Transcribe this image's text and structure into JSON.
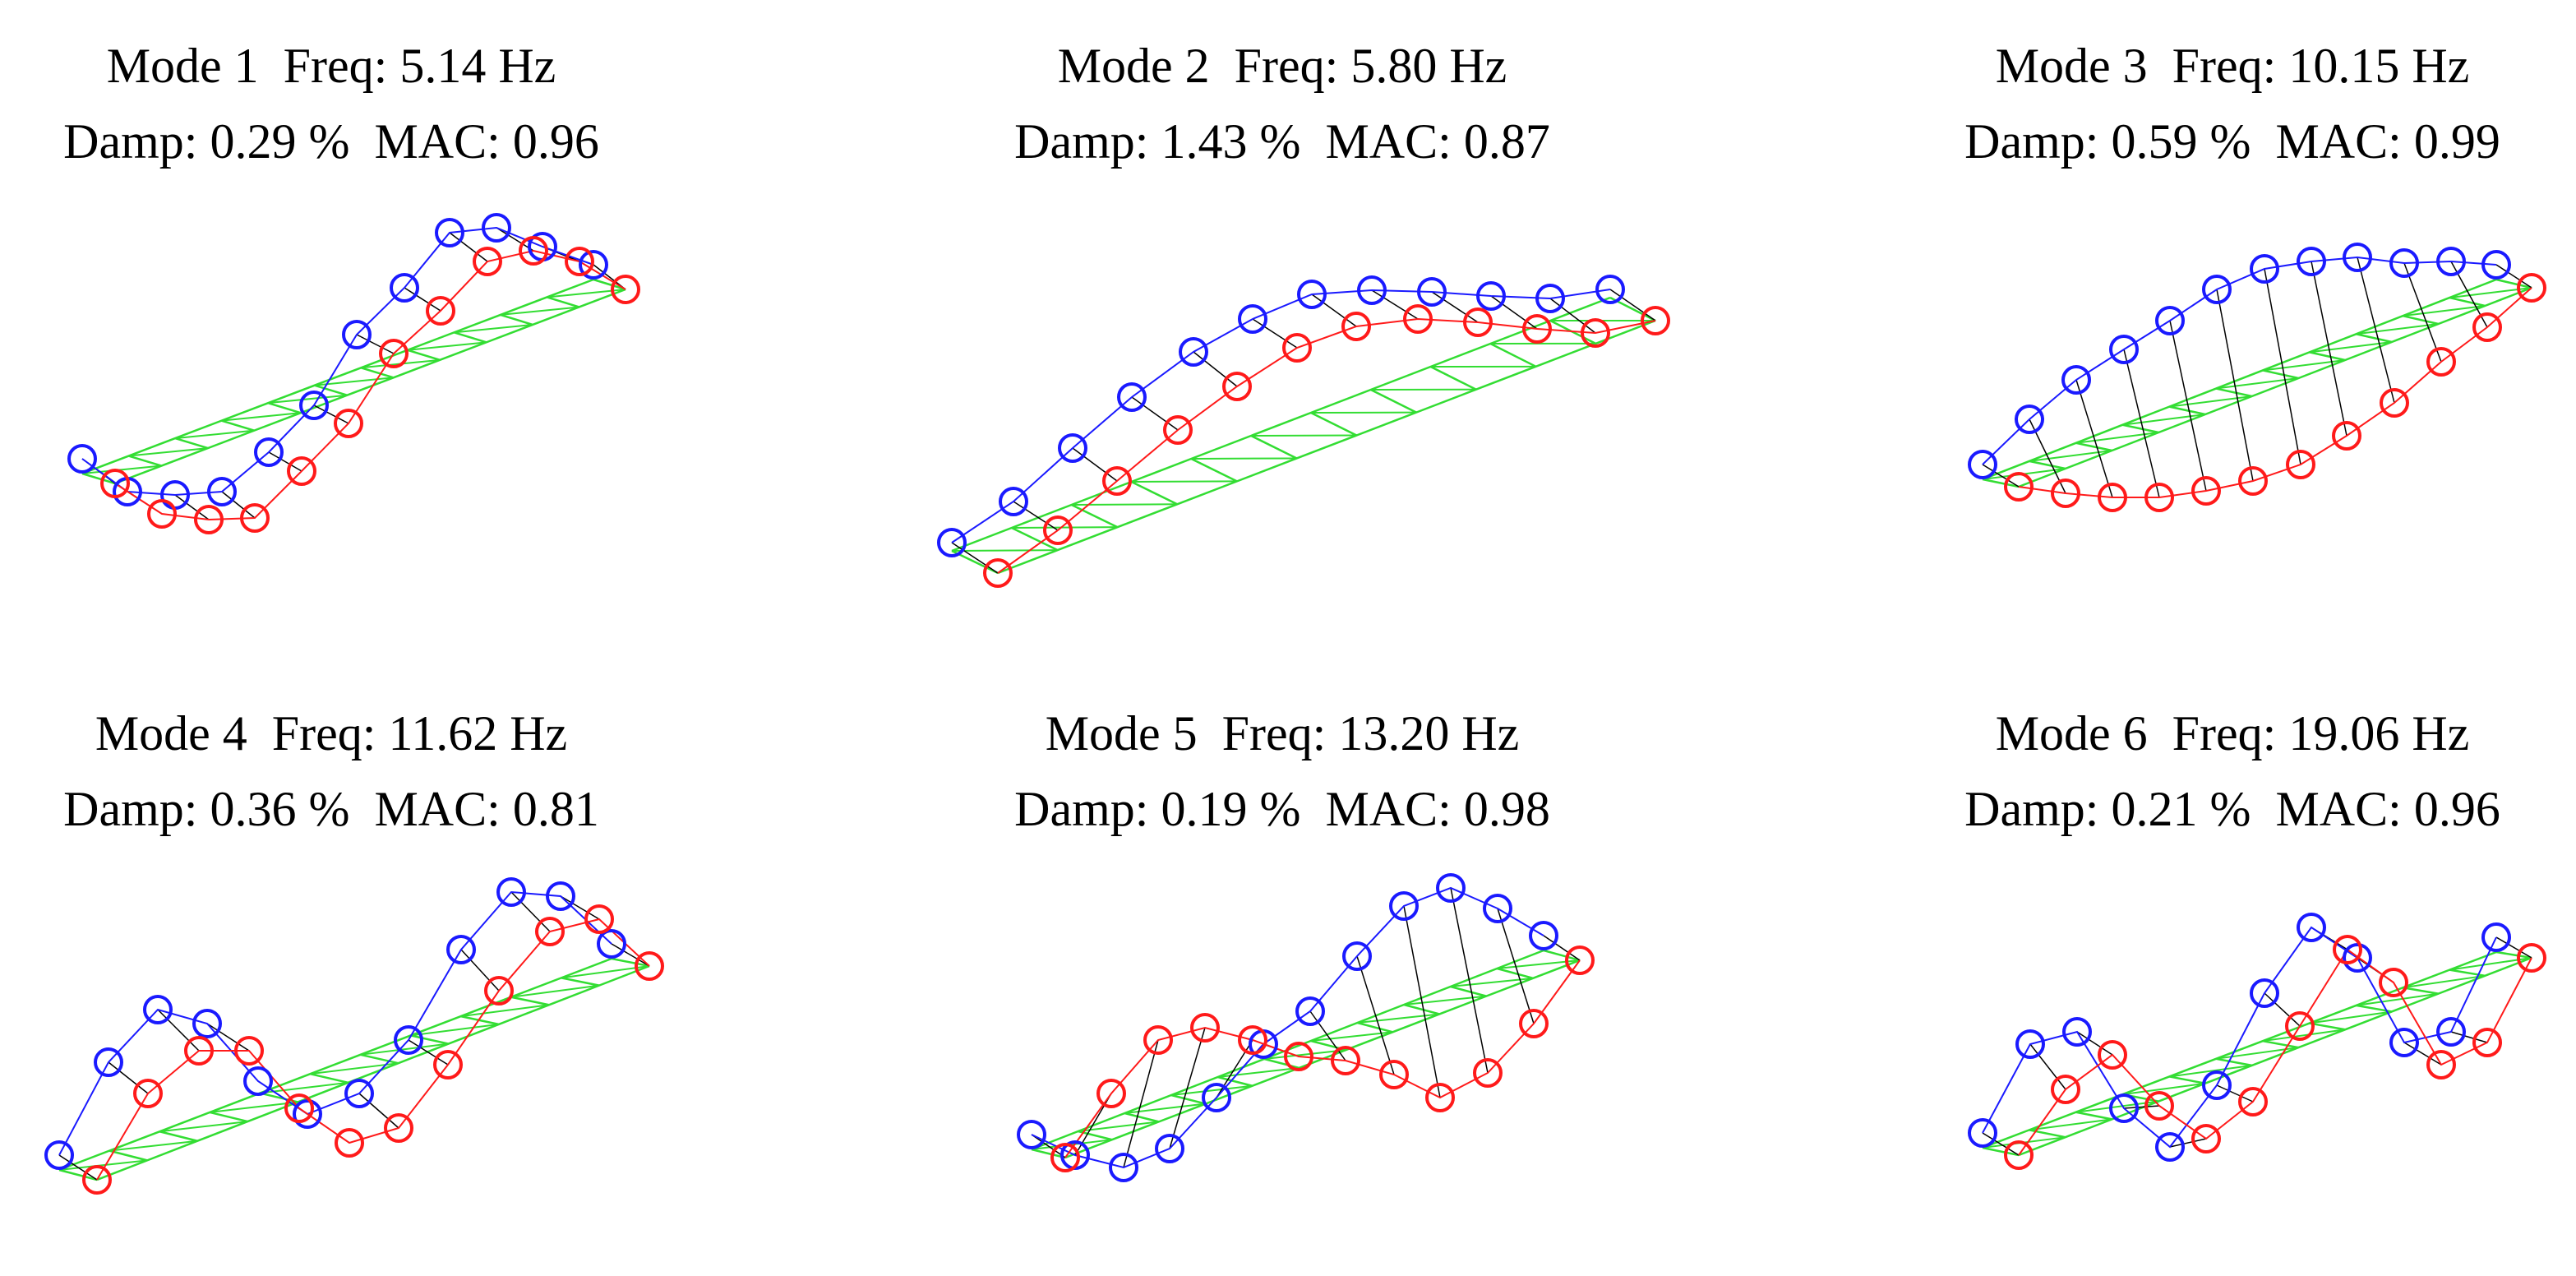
{
  "colors": {
    "undeformed": "#33dd33",
    "mode_estimated": "#1a1aff",
    "mode_reference": "#ff1a1a",
    "connector": "#000000",
    "background": "#ffffff"
  },
  "legend": [],
  "panels": [
    {
      "title_line1": "Mode 1  Freq: 5.14 Hz",
      "title_line2": "Damp: 0.29 %  MAC: 0.96",
      "blue": [
        [
          100,
          558
        ],
        [
          155,
          598
        ],
        [
          213,
          602
        ],
        [
          270,
          598
        ],
        [
          327,
          550
        ],
        [
          382,
          493
        ],
        [
          434,
          407
        ],
        [
          492,
          350
        ],
        [
          547,
          283
        ],
        [
          604,
          277
        ],
        [
          660,
          300
        ],
        [
          722,
          322
        ]
      ],
      "red": [
        [
          140,
          588
        ],
        [
          197,
          625
        ],
        [
          254,
          632
        ],
        [
          310,
          630
        ],
        [
          367,
          573
        ],
        [
          424,
          515
        ],
        [
          479,
          430
        ],
        [
          536,
          378
        ],
        [
          593,
          318
        ],
        [
          649,
          305
        ],
        [
          705,
          318
        ],
        [
          761,
          352
        ]
      ]
    },
    {
      "title_line1": "Mode 2  Freq: 5.80 Hz",
      "title_line2": "Damp: 1.43 %  MAC: 0.87",
      "blue": [
        [
          1158,
          660
        ],
        [
          1233,
          610
        ],
        [
          1305,
          545
        ],
        [
          1377,
          483
        ],
        [
          1452,
          428
        ],
        [
          1524,
          388
        ],
        [
          1596,
          358
        ],
        [
          1669,
          353
        ],
        [
          1742,
          355
        ],
        [
          1814,
          360
        ],
        [
          1886,
          363
        ],
        [
          1959,
          352
        ]
      ],
      "red": [
        [
          1214,
          697
        ],
        [
          1287,
          645
        ],
        [
          1359,
          585
        ],
        [
          1433,
          523
        ],
        [
          1505,
          470
        ],
        [
          1578,
          423
        ],
        [
          1650,
          397
        ],
        [
          1725,
          388
        ],
        [
          1798,
          392
        ],
        [
          1870,
          400
        ],
        [
          1941,
          405
        ],
        [
          2014,
          390
        ]
      ]
    },
    {
      "title_line1": "Mode 3  Freq: 10.15 Hz",
      "title_line2": "Damp: 0.59 %  MAC: 0.99",
      "blue": [
        [
          2412,
          565
        ],
        [
          2469,
          510
        ],
        [
          2526,
          462
        ],
        [
          2584,
          425
        ],
        [
          2640,
          390
        ],
        [
          2697,
          352
        ],
        [
          2755,
          327
        ],
        [
          2812,
          318
        ],
        [
          2868,
          313
        ],
        [
          2925,
          320
        ],
        [
          2982,
          318
        ],
        [
          3037,
          322
        ]
      ],
      "red": [
        [
          2456,
          592
        ],
        [
          2513,
          600
        ],
        [
          2570,
          605
        ],
        [
          2627,
          605
        ],
        [
          2684,
          597
        ],
        [
          2741,
          585
        ],
        [
          2799,
          565
        ],
        [
          2855,
          530
        ],
        [
          2913,
          490
        ],
        [
          2970,
          440
        ],
        [
          3026,
          398
        ],
        [
          3080,
          350
        ]
      ]
    },
    {
      "title_line1": "Mode 4  Freq: 11.62 Hz",
      "title_line2": "Damp: 0.36 %  MAC: 0.81",
      "blue": [
        [
          72,
          1405
        ],
        [
          132,
          1292
        ],
        [
          192,
          1228
        ],
        [
          252,
          1245
        ],
        [
          314,
          1315
        ],
        [
          374,
          1355
        ],
        [
          437,
          1330
        ],
        [
          497,
          1265
        ],
        [
          561,
          1155
        ],
        [
          622,
          1085
        ],
        [
          682,
          1090
        ],
        [
          744,
          1148
        ]
      ],
      "red": [
        [
          118,
          1435
        ],
        [
          180,
          1330
        ],
        [
          242,
          1278
        ],
        [
          303,
          1278
        ],
        [
          364,
          1348
        ],
        [
          425,
          1390
        ],
        [
          485,
          1372
        ],
        [
          545,
          1295
        ],
        [
          607,
          1205
        ],
        [
          669,
          1133
        ],
        [
          729,
          1118
        ],
        [
          790,
          1175
        ]
      ]
    },
    {
      "title_line1": "Mode 5  Freq: 13.20 Hz",
      "title_line2": "Damp: 0.19 %  MAC: 0.98",
      "blue": [
        [
          1255,
          1380
        ],
        [
          1308,
          1405
        ],
        [
          1367,
          1420
        ],
        [
          1423,
          1397
        ],
        [
          1480,
          1335
        ],
        [
          1537,
          1270
        ],
        [
          1594,
          1230
        ],
        [
          1651,
          1163
        ],
        [
          1708,
          1102
        ],
        [
          1765,
          1080
        ],
        [
          1822,
          1105
        ],
        [
          1878,
          1138
        ]
      ],
      "red": [
        [
          1296,
          1408
        ],
        [
          1352,
          1330
        ],
        [
          1409,
          1265
        ],
        [
          1466,
          1250
        ],
        [
          1524,
          1265
        ],
        [
          1580,
          1285
        ],
        [
          1637,
          1290
        ],
        [
          1696,
          1307
        ],
        [
          1752,
          1335
        ],
        [
          1810,
          1305
        ],
        [
          1866,
          1245
        ],
        [
          1922,
          1168
        ]
      ]
    },
    {
      "title_line1": "Mode 6  Freq: 19.06 Hz",
      "title_line2": "Damp: 0.21 %  MAC: 0.96",
      "blue": [
        [
          2412,
          1378
        ],
        [
          2470,
          1270
        ],
        [
          2527,
          1255
        ],
        [
          2584,
          1348
        ],
        [
          2640,
          1395
        ],
        [
          2697,
          1320
        ],
        [
          2755,
          1208
        ],
        [
          2812,
          1128
        ],
        [
          2868,
          1165
        ],
        [
          2925,
          1268
        ],
        [
          2982,
          1255
        ],
        [
          3037,
          1140
        ]
      ],
      "red": [
        [
          2456,
          1405
        ],
        [
          2513,
          1325
        ],
        [
          2570,
          1283
        ],
        [
          2627,
          1345
        ],
        [
          2684,
          1385
        ],
        [
          2741,
          1340
        ],
        [
          2798,
          1248
        ],
        [
          2856,
          1155
        ],
        [
          2912,
          1195
        ],
        [
          2970,
          1295
        ],
        [
          3026,
          1268
        ],
        [
          3080,
          1165
        ]
      ]
    }
  ]
}
